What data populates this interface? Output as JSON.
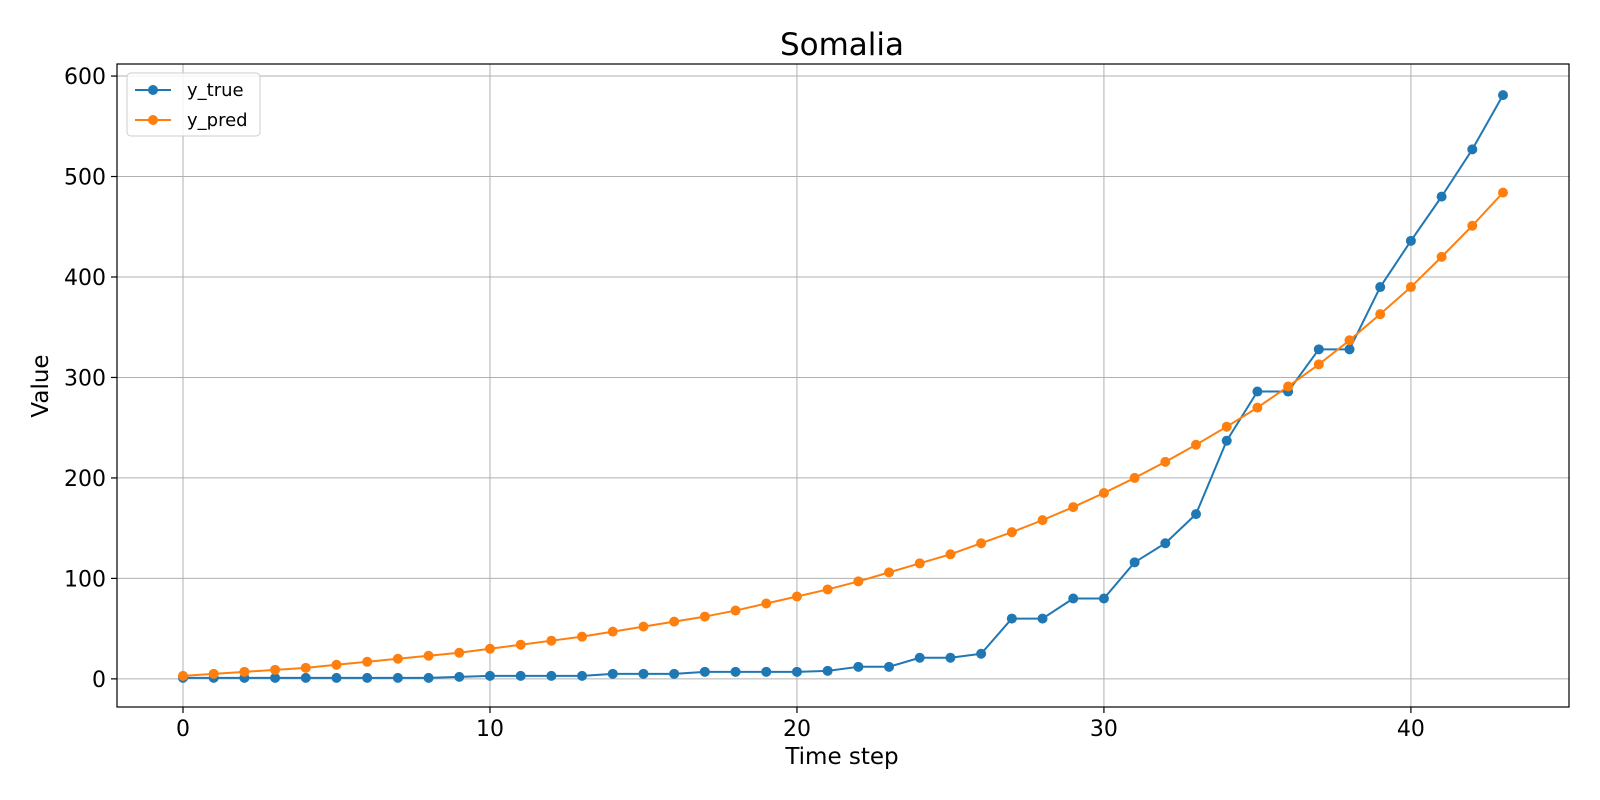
{
  "chart_data": {
    "type": "line",
    "title": "Somalia",
    "xlabel": "Time step",
    "ylabel": "Value",
    "xlim": [
      -2.15,
      45.15
    ],
    "ylim": [
      -28,
      612
    ],
    "xticks": [
      0,
      10,
      20,
      30,
      40
    ],
    "yticks": [
      0,
      100,
      200,
      300,
      400,
      500,
      600
    ],
    "grid": true,
    "legend_position": "upper-left",
    "x": [
      0,
      1,
      2,
      3,
      4,
      5,
      6,
      7,
      8,
      9,
      10,
      11,
      12,
      13,
      14,
      15,
      16,
      17,
      18,
      19,
      20,
      21,
      22,
      23,
      24,
      25,
      26,
      27,
      28,
      29,
      30,
      31,
      32,
      33,
      34,
      35,
      36,
      37,
      38,
      39,
      40,
      41,
      42,
      43
    ],
    "series": [
      {
        "name": "y_true",
        "color": "#1f77b4",
        "values": [
          1,
          1,
          1,
          1,
          1,
          1,
          1,
          1,
          1,
          2,
          3,
          3,
          3,
          3,
          5,
          5,
          5,
          7,
          7,
          7,
          7,
          8,
          12,
          12,
          21,
          21,
          25,
          60,
          60,
          80,
          80,
          116,
          135,
          164,
          237,
          286,
          286,
          328,
          328,
          390,
          436,
          480,
          527,
          581
        ]
      },
      {
        "name": "y_pred",
        "color": "#ff7f0e",
        "values": [
          3,
          5,
          7,
          9,
          11,
          14,
          17,
          20,
          23,
          26,
          30,
          34,
          38,
          42,
          47,
          52,
          57,
          62,
          68,
          75,
          82,
          89,
          97,
          106,
          115,
          124,
          135,
          146,
          158,
          171,
          185,
          200,
          216,
          233,
          251,
          270,
          291,
          313,
          337,
          363,
          390,
          420,
          451,
          484
        ]
      }
    ]
  }
}
